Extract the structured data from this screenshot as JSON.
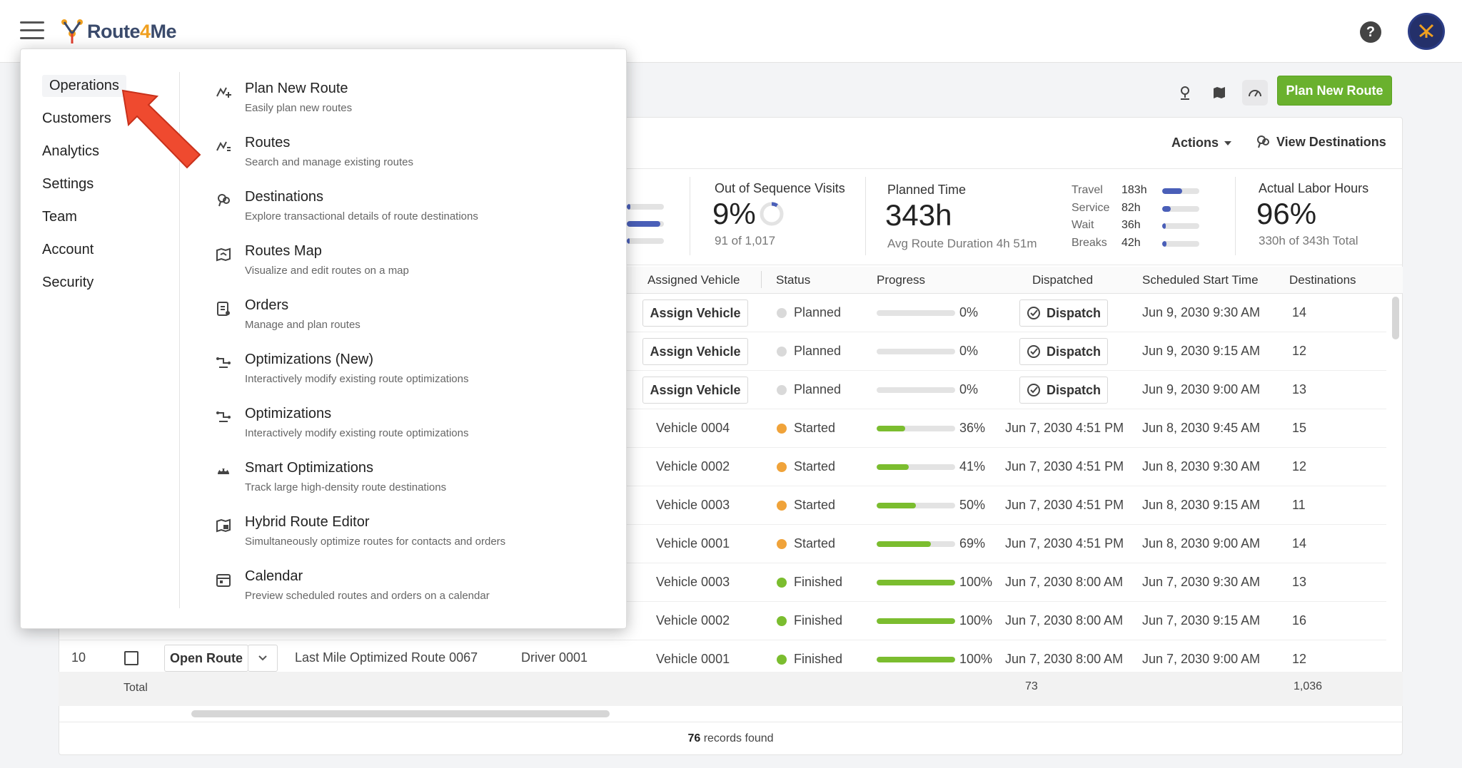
{
  "brand": {
    "name_prefix": "Route",
    "name_num": "4",
    "name_suffix": "Me"
  },
  "toolbar": {
    "plan_new_route": "Plan New Route",
    "actions": "Actions",
    "view_destinations": "View Destinations"
  },
  "stats": {
    "out_of_sequence": {
      "title": "Out of Sequence Visits",
      "value": "9%",
      "sub": "91 of 1,017"
    },
    "planned_time": {
      "title": "Planned Time",
      "value": "343h",
      "sub": "Avg Route Duration 4h 51m",
      "breakdown": [
        {
          "label": "Travel",
          "value": "183h",
          "fraction": 0.53
        },
        {
          "label": "Service",
          "value": "82h",
          "fraction": 0.24
        },
        {
          "label": "Wait",
          "value": "36h",
          "fraction": 0.1
        },
        {
          "label": "Breaks",
          "value": "42h",
          "fraction": 0.12
        }
      ]
    },
    "labor_hours": {
      "title": "Actual Labor Hours",
      "value": "96%",
      "sub": "330h of 343h Total"
    }
  },
  "table": {
    "headers": {
      "vehicle": "Assigned Vehicle",
      "status": "Status",
      "progress": "Progress",
      "dispatched": "Dispatched",
      "start": "Scheduled Start Time",
      "destinations": "Destinations"
    },
    "assign_label": "Assign Vehicle",
    "dispatch_label": "Dispatch",
    "rows": [
      {
        "vehicle": "",
        "status": "Planned",
        "status_color": "#d9d9d9",
        "progress": "0%",
        "progress_value": 0,
        "dispatched": "",
        "start": "Jun 9, 2030 9:30 AM",
        "destinations": "14"
      },
      {
        "vehicle": "",
        "status": "Planned",
        "status_color": "#d9d9d9",
        "progress": "0%",
        "progress_value": 0,
        "dispatched": "",
        "start": "Jun 9, 2030 9:15 AM",
        "destinations": "12"
      },
      {
        "vehicle": "",
        "status": "Planned",
        "status_color": "#d9d9d9",
        "progress": "0%",
        "progress_value": 0,
        "dispatched": "",
        "start": "Jun 9, 2030 9:00 AM",
        "destinations": "13"
      },
      {
        "vehicle": "Vehicle 0004",
        "status": "Started",
        "status_color": "#f0a33a",
        "progress": "36%",
        "progress_value": 0.36,
        "dispatched": "Jun 7, 2030 4:51 PM",
        "start": "Jun 8, 2030 9:45 AM",
        "destinations": "15"
      },
      {
        "vehicle": "Vehicle 0002",
        "status": "Started",
        "status_color": "#f0a33a",
        "progress": "41%",
        "progress_value": 0.41,
        "dispatched": "Jun 7, 2030 4:51 PM",
        "start": "Jun 8, 2030 9:30 AM",
        "destinations": "12"
      },
      {
        "vehicle": "Vehicle 0003",
        "status": "Started",
        "status_color": "#f0a33a",
        "progress": "50%",
        "progress_value": 0.5,
        "dispatched": "Jun 7, 2030 4:51 PM",
        "start": "Jun 8, 2030 9:15 AM",
        "destinations": "11"
      },
      {
        "vehicle": "Vehicle 0001",
        "status": "Started",
        "status_color": "#f0a33a",
        "progress": "69%",
        "progress_value": 0.69,
        "dispatched": "Jun 7, 2030 4:51 PM",
        "start": "Jun 8, 2030 9:00 AM",
        "destinations": "14"
      },
      {
        "vehicle": "Vehicle 0003",
        "status": "Finished",
        "status_color": "#7bbd2f",
        "progress": "100%",
        "progress_value": 1,
        "dispatched": "Jun 7, 2030 8:00 AM",
        "start": "Jun 7, 2030 9:30 AM",
        "destinations": "13"
      },
      {
        "vehicle": "Vehicle 0002",
        "status": "Finished",
        "status_color": "#7bbd2f",
        "progress": "100%",
        "progress_value": 1,
        "dispatched": "Jun 7, 2030 8:00 AM",
        "start": "Jun 7, 2030 9:15 AM",
        "destinations": "16"
      },
      {
        "vehicle": "Vehicle 0001",
        "status": "Finished",
        "status_color": "#7bbd2f",
        "progress": "100%",
        "progress_value": 1,
        "dispatched": "Jun 7, 2030 8:00 AM",
        "start": "Jun 7, 2030 9:00 AM",
        "destinations": "12"
      }
    ],
    "last_row": {
      "index": "10",
      "open_route": "Open Route",
      "name": "Last Mile Optimized Route 0067",
      "driver": "Driver 0001"
    },
    "total": {
      "label": "Total",
      "dispatched_total": "73",
      "destinations_total": "1,036"
    },
    "footer": {
      "count": "76",
      "text": " records found"
    }
  },
  "menu": {
    "nav": [
      "Operations",
      "Customers",
      "Analytics",
      "Settings",
      "Team",
      "Account",
      "Security"
    ],
    "items": [
      {
        "title": "Plan New Route",
        "desc": "Easily plan new routes",
        "icon": "route-plus-icon"
      },
      {
        "title": "Routes",
        "desc": "Search and manage existing routes",
        "icon": "routes-icon"
      },
      {
        "title": "Destinations",
        "desc": "Explore transactional details of route destinations",
        "icon": "destinations-icon"
      },
      {
        "title": "Routes Map",
        "desc": "Visualize and edit routes on a map",
        "icon": "map-icon"
      },
      {
        "title": "Orders",
        "desc": "Manage and plan routes",
        "icon": "orders-icon"
      },
      {
        "title": "Optimizations (New)",
        "desc": "Interactively modify existing route optimizations",
        "icon": "optimizations-icon"
      },
      {
        "title": "Optimizations",
        "desc": "Interactively modify existing route optimizations",
        "icon": "optimizations-icon"
      },
      {
        "title": "Smart Optimizations",
        "desc": "Track large high-density route destinations",
        "icon": "smart-optimizations-icon"
      },
      {
        "title": "Hybrid Route Editor",
        "desc": "Simultaneously optimize routes for contacts and orders",
        "icon": "hybrid-editor-icon"
      },
      {
        "title": "Calendar",
        "desc": "Preview scheduled routes and orders on a calendar",
        "icon": "calendar-icon"
      }
    ]
  }
}
